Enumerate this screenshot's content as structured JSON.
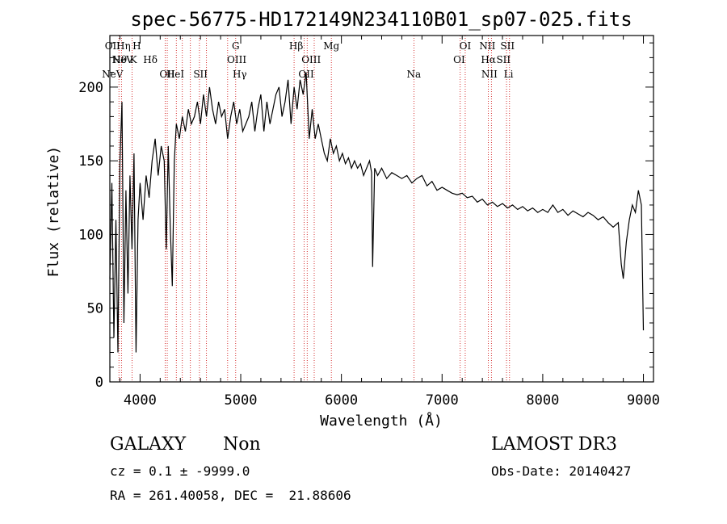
{
  "chart_data": {
    "type": "line",
    "title": "spec-56775-HD172149N234110B01_sp07-025.fits",
    "xlabel": "Wavelength (Å)",
    "ylabel": "Flux (relative)",
    "xlim": [
      3700,
      9100
    ],
    "ylim": [
      0,
      235
    ],
    "xticks": [
      4000,
      5000,
      6000,
      7000,
      8000,
      9000
    ],
    "yticks": [
      0,
      50,
      100,
      150,
      200
    ],
    "xtick_labels": [
      "4000",
      "5000",
      "6000",
      "7000",
      "8000",
      "9000"
    ],
    "ytick_labels": [
      "0",
      "50",
      "100",
      "150",
      "200"
    ],
    "series": [
      {
        "name": "flux",
        "x": [
          3700,
          3720,
          3740,
          3760,
          3780,
          3800,
          3820,
          3840,
          3860,
          3880,
          3900,
          3920,
          3940,
          3960,
          3980,
          4000,
          4030,
          4060,
          4090,
          4120,
          4150,
          4180,
          4210,
          4240,
          4260,
          4280,
          4300,
          4320,
          4340,
          4360,
          4390,
          4420,
          4450,
          4480,
          4510,
          4540,
          4570,
          4600,
          4630,
          4660,
          4690,
          4720,
          4750,
          4780,
          4810,
          4840,
          4870,
          4900,
          4930,
          4960,
          4990,
          5020,
          5050,
          5080,
          5110,
          5140,
          5170,
          5200,
          5230,
          5260,
          5290,
          5320,
          5350,
          5380,
          5410,
          5440,
          5470,
          5500,
          5530,
          5560,
          5590,
          5620,
          5650,
          5680,
          5710,
          5740,
          5770,
          5800,
          5830,
          5860,
          5890,
          5920,
          5950,
          5980,
          6010,
          6040,
          6070,
          6100,
          6130,
          6160,
          6190,
          6220,
          6250,
          6280,
          6300,
          6310,
          6330,
          6360,
          6400,
          6450,
          6500,
          6550,
          6600,
          6650,
          6700,
          6750,
          6800,
          6850,
          6900,
          6950,
          7000,
          7050,
          7100,
          7150,
          7200,
          7250,
          7300,
          7350,
          7400,
          7450,
          7500,
          7550,
          7600,
          7650,
          7700,
          7750,
          7800,
          7850,
          7900,
          7950,
          8000,
          8050,
          8100,
          8150,
          8200,
          8250,
          8300,
          8350,
          8400,
          8450,
          8500,
          8550,
          8600,
          8650,
          8700,
          8750,
          8780,
          8800,
          8830,
          8860,
          8890,
          8920,
          8950,
          8980,
          9000
        ],
        "values": [
          70,
          135,
          30,
          110,
          20,
          150,
          190,
          40,
          130,
          60,
          140,
          90,
          155,
          20,
          110,
          135,
          110,
          140,
          125,
          150,
          165,
          140,
          160,
          150,
          90,
          160,
          105,
          65,
          150,
          175,
          165,
          180,
          170,
          185,
          175,
          180,
          190,
          175,
          195,
          180,
          200,
          185,
          175,
          190,
          180,
          185,
          165,
          180,
          190,
          175,
          185,
          170,
          175,
          180,
          190,
          170,
          185,
          195,
          170,
          190,
          175,
          185,
          195,
          200,
          180,
          190,
          205,
          175,
          200,
          185,
          205,
          195,
          210,
          165,
          185,
          165,
          175,
          165,
          155,
          150,
          165,
          155,
          160,
          150,
          155,
          148,
          152,
          145,
          150,
          145,
          148,
          140,
          145,
          150,
          142,
          78,
          145,
          140,
          145,
          138,
          142,
          140,
          138,
          140,
          135,
          138,
          140,
          133,
          136,
          130,
          132,
          130,
          128,
          127,
          128,
          125,
          126,
          122,
          124,
          120,
          122,
          119,
          121,
          118,
          120,
          117,
          119,
          116,
          118,
          115,
          117,
          115,
          120,
          115,
          117,
          113,
          116,
          114,
          112,
          115,
          113,
          110,
          112,
          108,
          105,
          108,
          80,
          70,
          95,
          110,
          120,
          115,
          130,
          120,
          35
        ]
      }
    ],
    "line_markers": [
      {
        "label": "NeV",
        "x": 3726,
        "row": 3
      },
      {
        "label": "NeV",
        "x": 3826,
        "row": 2
      },
      {
        "label": "OII",
        "x": 3727,
        "row": 1
      },
      {
        "label": "Hθ",
        "x": 3798,
        "row": 2
      },
      {
        "label": "Hη",
        "x": 3835,
        "row": 1
      },
      {
        "label": "H",
        "x": 3968,
        "row": 1
      },
      {
        "label": "K",
        "x": 3934,
        "row": 2
      },
      {
        "label": "Hδ",
        "x": 4102,
        "row": 2
      },
      {
        "label": "OII",
        "x": 4270,
        "row": 3
      },
      {
        "label": "HeI",
        "x": 4350,
        "row": 3
      },
      {
        "label": "SII",
        "x": 4600,
        "row": 3
      },
      {
        "label": "G",
        "x": 4950,
        "row": 1
      },
      {
        "label": "OIII",
        "x": 4960,
        "row": 2
      },
      {
        "label": "Hγ",
        "x": 4990,
        "row": 3
      },
      {
        "label": "Hβ",
        "x": 5550,
        "row": 1
      },
      {
        "label": "OIII",
        "x": 5700,
        "row": 2
      },
      {
        "label": "OII",
        "x": 5650,
        "row": 3
      },
      {
        "label": "Mg",
        "x": 5900,
        "row": 1
      },
      {
        "label": "Na",
        "x": 6720,
        "row": 3
      },
      {
        "label": "OI",
        "x": 7230,
        "row": 1
      },
      {
        "label": "OI",
        "x": 7170,
        "row": 2
      },
      {
        "label": "NII",
        "x": 7450,
        "row": 1
      },
      {
        "label": "SII",
        "x": 7650,
        "row": 1
      },
      {
        "label": "Hα",
        "x": 7460,
        "row": 2
      },
      {
        "label": "SII",
        "x": 7610,
        "row": 2
      },
      {
        "label": "NII",
        "x": 7470,
        "row": 3
      },
      {
        "label": "Li",
        "x": 7660,
        "row": 3
      }
    ],
    "marker_lines_x": [
      3790,
      3815,
      3920,
      4250,
      4270,
      4360,
      4420,
      4500,
      4590,
      4660,
      4870,
      4950,
      5530,
      5630,
      5660,
      5730,
      5900,
      6720,
      7180,
      7230,
      7460,
      7490,
      7640,
      7670
    ]
  },
  "info": {
    "object_class": "GALAXY",
    "subclass": "Non",
    "survey": "LAMOST DR3",
    "redshift": "cz = 0.1 ± -9999.0",
    "obs_date": "Obs-Date: 20140427",
    "coords": "RA = 261.40058, DEC =  21.88606"
  },
  "colors": {
    "spectrum": "#000000",
    "marker_line": "#cc0000"
  }
}
